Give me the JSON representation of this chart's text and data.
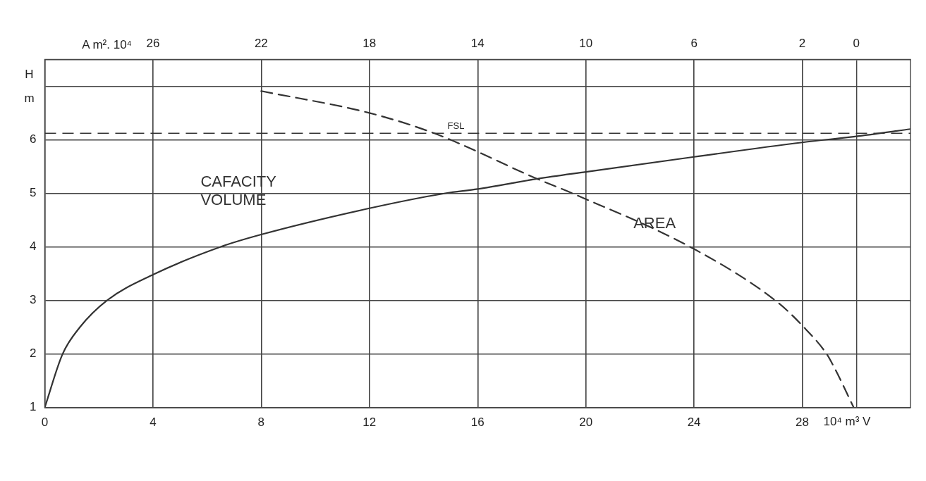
{
  "chart_data": {
    "type": "line",
    "xlabel": "10⁴ m³ V",
    "x2label": "A m². 10⁴",
    "ylabel": "H m",
    "xlim": [
      0,
      32
    ],
    "xticks": [
      0,
      4,
      8,
      12,
      16,
      20,
      24,
      28
    ],
    "x2lim": [
      30,
      -2
    ],
    "x2ticks": [
      26,
      22,
      18,
      14,
      10,
      6,
      2,
      0
    ],
    "ylim": [
      1,
      7.5
    ],
    "yticks": [
      1,
      2,
      3,
      4,
      5,
      6,
      {
        "value": 7,
        "label": null
      }
    ],
    "grid": true,
    "legend": false,
    "marker": "none",
    "series": [
      {
        "name": "CAFACITY VOLUME",
        "color": "#333333",
        "line_style": "solid",
        "x": [
          0,
          0.66,
          1.3,
          2.3,
          4,
          6.5,
          8,
          12,
          14.8,
          16,
          18.2,
          20,
          24,
          28,
          30.1,
          32
        ],
        "values": [
          1,
          2,
          2.5,
          3,
          3.48,
          4,
          4.23,
          4.72,
          5,
          5.08,
          5.27,
          5.4,
          5.68,
          5.95,
          6.07,
          6.2
        ]
      },
      {
        "name": "AREA",
        "color": "#333333",
        "line_style": "dashed",
        "axis": "x2",
        "x": [
          22,
          18,
          15.6,
          11.8,
          10.5,
          6,
          2.9,
          2,
          1.1,
          0.8,
          0.1
        ],
        "values": [
          6.91,
          6.5,
          6.12,
          5.27,
          5,
          3.96,
          2.96,
          2.53,
          2,
          1.73,
          1
        ]
      }
    ],
    "ref_lines": [
      {
        "axis": "y",
        "value": 6.12,
        "label": "FSL",
        "color": "#333333",
        "line_style": "dashed"
      }
    ]
  }
}
